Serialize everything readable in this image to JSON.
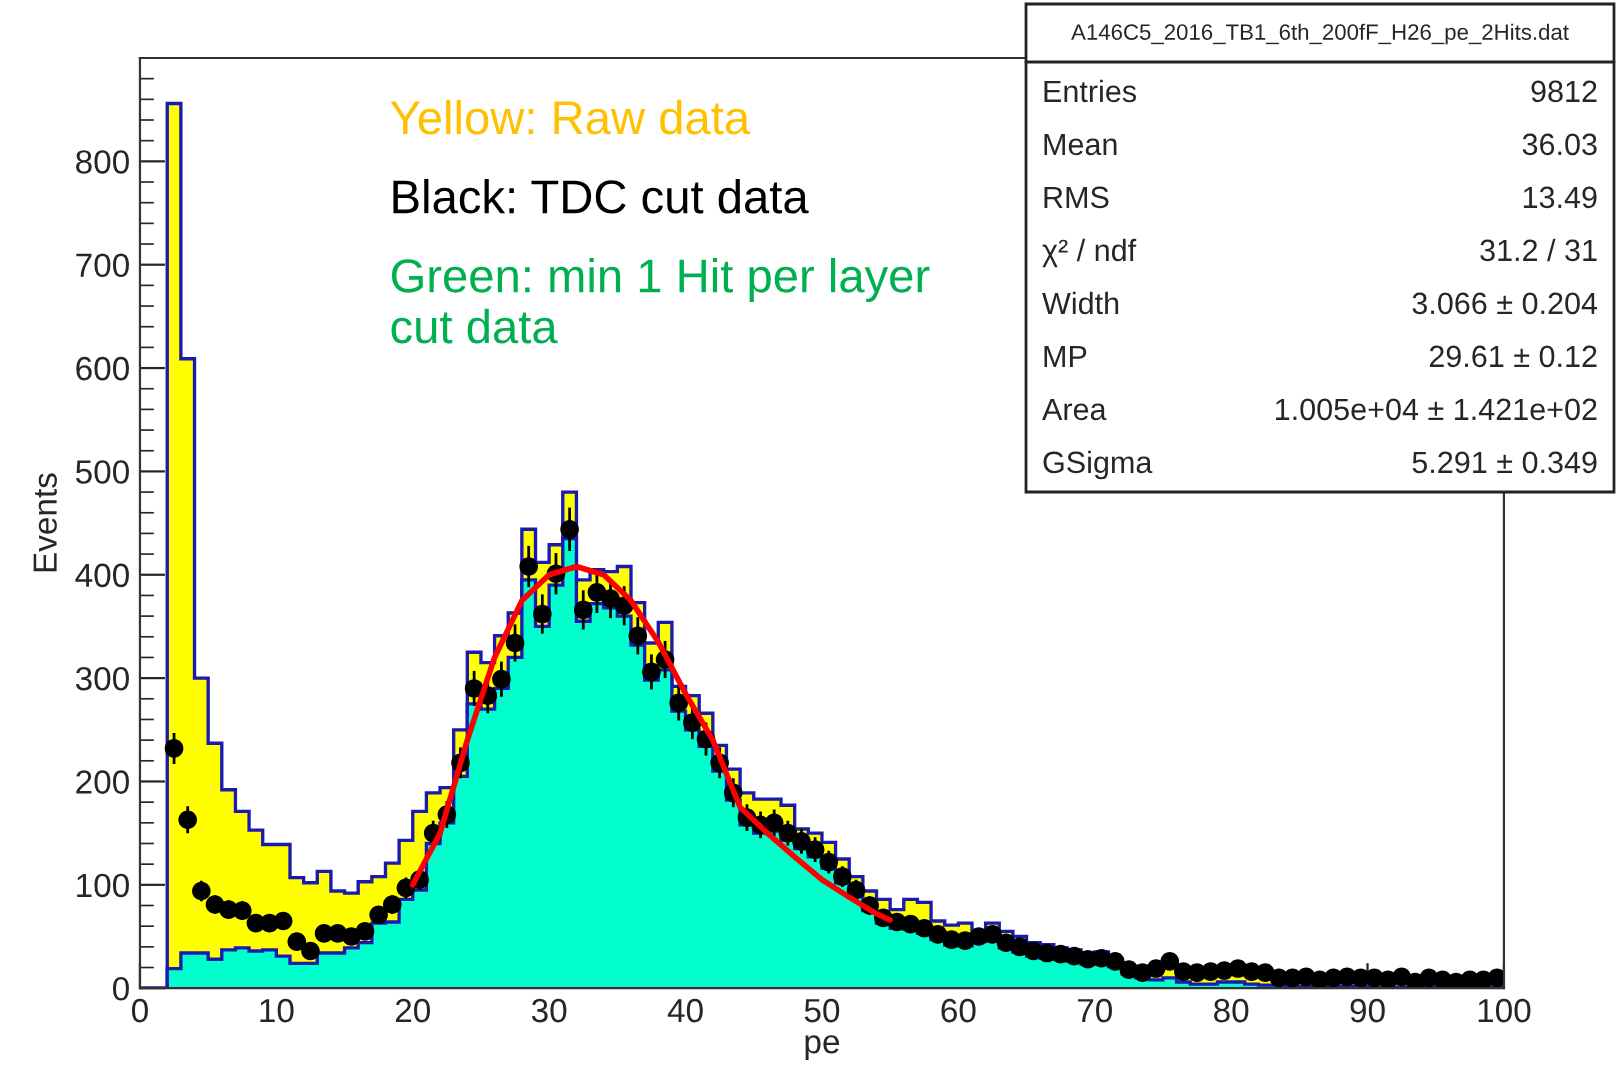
{
  "chart_data": {
    "type": "histogram",
    "xlabel": "pe",
    "ylabel": "Events",
    "bins": [
      0,
      1,
      2,
      3,
      4,
      5,
      6,
      7,
      8,
      9,
      10,
      11,
      12,
      13,
      14,
      15,
      16,
      17,
      18,
      19,
      20,
      21,
      22,
      23,
      24,
      25,
      26,
      27,
      28,
      29,
      30,
      31,
      32,
      33,
      34,
      35,
      36,
      37,
      38,
      39,
      40,
      41,
      42,
      43,
      44,
      45,
      46,
      47,
      48,
      49,
      50,
      51,
      52,
      53,
      54,
      55,
      56,
      57,
      58,
      59,
      60,
      61,
      62,
      63,
      64,
      65,
      66,
      67,
      68,
      69,
      70,
      71,
      72,
      73,
      74,
      75,
      76,
      77,
      78,
      79,
      80,
      81,
      82,
      83,
      84,
      85,
      86,
      87,
      88,
      89,
      90,
      91,
      92,
      93,
      94,
      95,
      96,
      97,
      98,
      99,
      100
    ],
    "xlim": [
      0,
      100
    ],
    "ylim": [
      0,
      900
    ],
    "xticks": [
      0,
      10,
      20,
      30,
      40,
      50,
      60,
      70,
      80,
      90,
      100
    ],
    "yticks": [
      0,
      100,
      200,
      300,
      400,
      500,
      600,
      700,
      800
    ],
    "grid": false,
    "series": [
      {
        "color": "#ffff00",
        "values": [
          0,
          0,
          856,
          609,
          300,
          237,
          192,
          171,
          153,
          139,
          139,
          107,
          102,
          113,
          94,
          92,
          103,
          108,
          121,
          143,
          171,
          189,
          194,
          250,
          325,
          315,
          341,
          363,
          444,
          412,
          429,
          480,
          395,
          405,
          403,
          408,
          373,
          334,
          354,
          292,
          283,
          266,
          235,
          212,
          189,
          183,
          183,
          177,
          154,
          150,
          141,
          125,
          108,
          94,
          86,
          76,
          86,
          83,
          65,
          61,
          63,
          54,
          63,
          55,
          50,
          44,
          42,
          39,
          37,
          34,
          35,
          28,
          21,
          18,
          21,
          28,
          18,
          17,
          18,
          19,
          21,
          18,
          17,
          12,
          12,
          13,
          10,
          12,
          13,
          12,
          12,
          10,
          13,
          8,
          12,
          10,
          8,
          10,
          10,
          12
        ]
      },
      {
        "color": "#00ffcc",
        "values": [
          0,
          0,
          19,
          34,
          34,
          28,
          37,
          39,
          36,
          37,
          31,
          24,
          24,
          34,
          34,
          39,
          44,
          63,
          64,
          86,
          95,
          140,
          160,
          205,
          275,
          270,
          290,
          320,
          395,
          350,
          390,
          435,
          355,
          372,
          368,
          360,
          332,
          298,
          308,
          268,
          250,
          234,
          210,
          182,
          158,
          150,
          152,
          143,
          135,
          127,
          116,
          102,
          90,
          75,
          63,
          58,
          57,
          53,
          47,
          42,
          41,
          45,
          47,
          39,
          35,
          31,
          29,
          28,
          26,
          23,
          24,
          21,
          14,
          10,
          8,
          10,
          6,
          4,
          4,
          6,
          6,
          4,
          3,
          3,
          2,
          2,
          2,
          2,
          2,
          2,
          1,
          1,
          1,
          1,
          1,
          1,
          1,
          1,
          1,
          1
        ]
      },
      {
        "type": "scatter",
        "color": "#000000",
        "marker": "circle",
        "x": [
          2.5,
          3.5,
          4.5,
          5.5,
          6.5,
          7.5,
          8.5,
          9.5,
          10.5,
          11.5,
          12.5,
          13.5,
          14.5,
          15.5,
          16.5,
          17.5,
          18.5,
          19.5,
          20.5,
          21.5,
          22.5,
          23.5,
          24.5,
          25.5,
          26.5,
          27.5,
          28.5,
          29.5,
          30.5,
          31.5,
          32.5,
          33.5,
          34.5,
          35.5,
          36.5,
          37.5,
          38.5,
          39.5,
          40.5,
          41.5,
          42.5,
          43.5,
          44.5,
          45.5,
          46.5,
          47.5,
          48.5,
          49.5,
          50.5,
          51.5,
          52.5,
          53.5,
          54.5,
          55.5,
          56.5,
          57.5,
          58.5,
          59.5,
          60.5,
          61.5,
          62.5,
          63.5,
          64.5,
          65.5,
          66.5,
          67.5,
          68.5,
          69.5,
          70.5,
          71.5,
          72.5,
          73.5,
          74.5,
          75.5,
          76.5,
          77.5,
          78.5,
          79.5,
          80.5,
          81.5,
          82.5,
          83.5,
          84.5,
          85.5,
          86.5,
          87.5,
          88.5,
          89.5,
          90.5,
          91.5,
          92.5,
          93.5,
          94.5,
          95.5,
          96.5,
          97.5,
          98.5,
          99.5
        ],
        "values": [
          232,
          163,
          94,
          81,
          76,
          75,
          63,
          63,
          65,
          45,
          36,
          53,
          53,
          50,
          55,
          71,
          81,
          97,
          105,
          150,
          168,
          218,
          290,
          283,
          299,
          334,
          408,
          362,
          401,
          444,
          366,
          383,
          377,
          370,
          341,
          306,
          318,
          276,
          257,
          241,
          218,
          189,
          165,
          158,
          160,
          150,
          142,
          134,
          122,
          108,
          95,
          80,
          68,
          64,
          62,
          58,
          52,
          47,
          46,
          50,
          52,
          44,
          40,
          36,
          34,
          33,
          31,
          28,
          29,
          26,
          18,
          15,
          19,
          26,
          16,
          15,
          16,
          17,
          19,
          16,
          15,
          10,
          10,
          11,
          8,
          10,
          11,
          10,
          10,
          8,
          11,
          6,
          10,
          8,
          6,
          8,
          8,
          10
        ],
        "errors": [
          15,
          13,
          10,
          9,
          9,
          9,
          8,
          8,
          8,
          7,
          6,
          7,
          7,
          7,
          7,
          8,
          9,
          10,
          10,
          12,
          13,
          15,
          17,
          17,
          17,
          18,
          20,
          19,
          20,
          21,
          19,
          20,
          19,
          19,
          18,
          17,
          18,
          17,
          16,
          16,
          15,
          14,
          13,
          13,
          13,
          12,
          12,
          12,
          11,
          10,
          10,
          9,
          8,
          8,
          8,
          8,
          7,
          7,
          7,
          7,
          7,
          7,
          6,
          6,
          6,
          6,
          6,
          5,
          5,
          5,
          4,
          4,
          4,
          5,
          4,
          4,
          4,
          4,
          4,
          4,
          4,
          3,
          3,
          3,
          3,
          3,
          3,
          3,
          3,
          3,
          3,
          2,
          3,
          3,
          2,
          3,
          3,
          3
        ]
      },
      {
        "type": "line",
        "color": "#ff0000",
        "x": [
          20,
          22,
          24,
          26,
          28,
          30,
          32,
          34,
          36,
          38,
          40,
          42,
          44,
          46,
          48,
          50,
          52,
          54,
          55
        ],
        "values": [
          100,
          150,
          240,
          320,
          375,
          400,
          408,
          400,
          375,
          335,
          285,
          240,
          175,
          150,
          127,
          105,
          88,
          72,
          66
        ]
      }
    ],
    "annotations": [
      "Yellow: Raw data",
      "Black: TDC cut data",
      "Green: min 1 Hit per layer cut data",
      "A146C5_2016_TB1_6th_200fF_H26_pe_2Hits.dat",
      "Entries\t9812",
      "Mean\t36.03",
      "RMS\t13.49",
      "χ² / ndf\t31.2 / 31",
      "Width\t3.066 ± 0.204",
      "MP\t29.61 ± 0.12",
      "Area\t1.005e+04 ± 1.421e+02",
      "GSigma\t5.291 ± 0.349"
    ]
  }
}
